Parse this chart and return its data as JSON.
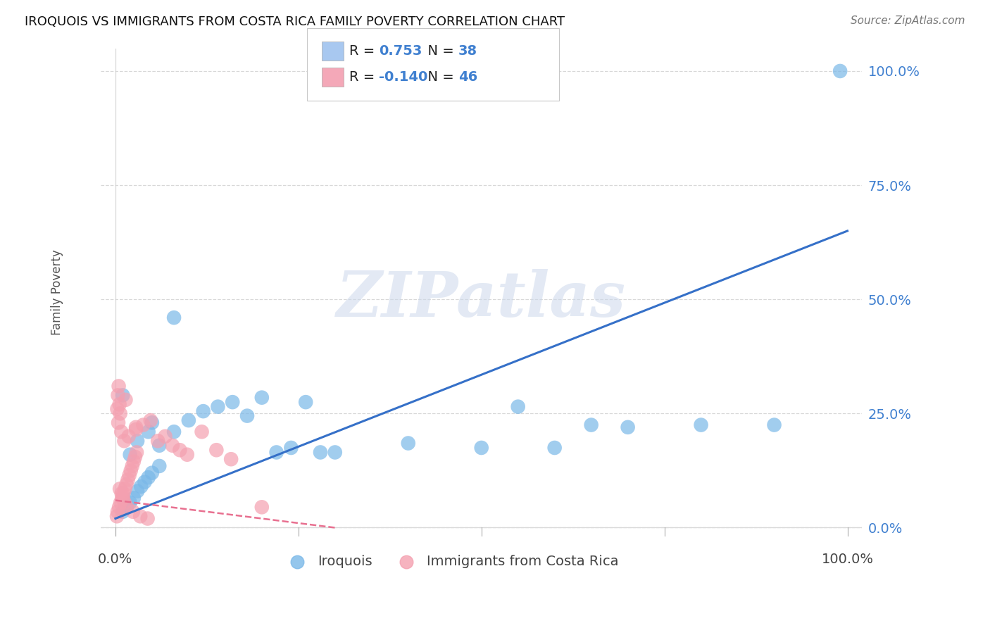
{
  "title": "IROQUOIS VS IMMIGRANTS FROM COSTA RICA FAMILY POVERTY CORRELATION CHART",
  "source": "Source: ZipAtlas.com",
  "ylabel": "Family Poverty",
  "ytick_labels": [
    "0.0%",
    "25.0%",
    "50.0%",
    "75.0%",
    "100.0%"
  ],
  "ytick_values": [
    0,
    25,
    50,
    75,
    100
  ],
  "xtick_labels": [
    "0.0%",
    "100.0%"
  ],
  "xtick_values": [
    0,
    100
  ],
  "xlim": [
    -2,
    102
  ],
  "ylim": [
    -2,
    105
  ],
  "legend_entries": [
    {
      "label": "Iroquois",
      "color": "#a8c8f0",
      "R": "0.753",
      "N": "38"
    },
    {
      "label": "Immigrants from Costa Rica",
      "color": "#f4a8b8",
      "R": "-0.140",
      "N": "46"
    }
  ],
  "blue_line": {
    "x0": 0,
    "y0": 2,
    "x1": 100,
    "y1": 65
  },
  "pink_line": {
    "x0": 0,
    "y0": 6,
    "x1": 30,
    "y1": 0
  },
  "blue_scatter": [
    [
      1.0,
      3.5
    ],
    [
      1.5,
      4.5
    ],
    [
      2.0,
      5.5
    ],
    [
      2.5,
      6.5
    ],
    [
      3.0,
      8.0
    ],
    [
      3.5,
      9.0
    ],
    [
      4.0,
      10.0
    ],
    [
      4.5,
      11.0
    ],
    [
      5.0,
      12.0
    ],
    [
      6.0,
      13.5
    ],
    [
      2.0,
      16.0
    ],
    [
      3.0,
      19.0
    ],
    [
      4.5,
      21.0
    ],
    [
      6.0,
      18.0
    ],
    [
      8.0,
      21.0
    ],
    [
      10.0,
      23.5
    ],
    [
      12.0,
      25.5
    ],
    [
      14.0,
      26.5
    ],
    [
      16.0,
      27.5
    ],
    [
      18.0,
      24.5
    ],
    [
      20.0,
      28.5
    ],
    [
      22.0,
      16.5
    ],
    [
      24.0,
      17.5
    ],
    [
      26.0,
      27.5
    ],
    [
      28.0,
      16.5
    ],
    [
      30.0,
      16.5
    ],
    [
      40.0,
      18.5
    ],
    [
      50.0,
      17.5
    ],
    [
      55.0,
      26.5
    ],
    [
      60.0,
      17.5
    ],
    [
      65.0,
      22.5
    ],
    [
      70.0,
      22.0
    ],
    [
      80.0,
      22.5
    ],
    [
      90.0,
      22.5
    ],
    [
      1.0,
      29.0
    ],
    [
      8.0,
      46.0
    ],
    [
      99.0,
      100.0
    ],
    [
      5.0,
      23.0
    ]
  ],
  "pink_scatter": [
    [
      0.2,
      2.5
    ],
    [
      0.3,
      3.5
    ],
    [
      0.5,
      4.5
    ],
    [
      0.7,
      5.5
    ],
    [
      0.9,
      6.5
    ],
    [
      1.1,
      7.5
    ],
    [
      1.3,
      8.5
    ],
    [
      1.5,
      9.5
    ],
    [
      1.7,
      10.5
    ],
    [
      1.9,
      11.5
    ],
    [
      2.1,
      12.5
    ],
    [
      2.3,
      13.5
    ],
    [
      2.5,
      14.5
    ],
    [
      2.7,
      15.5
    ],
    [
      2.9,
      16.5
    ],
    [
      0.4,
      23.0
    ],
    [
      0.8,
      21.0
    ],
    [
      1.2,
      19.0
    ],
    [
      1.8,
      20.0
    ],
    [
      2.8,
      21.5
    ],
    [
      3.8,
      22.5
    ],
    [
      4.8,
      23.5
    ],
    [
      5.8,
      19.0
    ],
    [
      6.8,
      20.0
    ],
    [
      7.8,
      18.0
    ],
    [
      8.8,
      17.0
    ],
    [
      9.8,
      16.0
    ],
    [
      11.8,
      21.0
    ],
    [
      13.8,
      17.0
    ],
    [
      15.8,
      15.0
    ],
    [
      0.25,
      26.0
    ],
    [
      1.4,
      28.0
    ],
    [
      2.8,
      22.0
    ],
    [
      20.0,
      4.5
    ],
    [
      0.6,
      8.5
    ],
    [
      0.85,
      7.5
    ],
    [
      1.05,
      6.5
    ],
    [
      1.25,
      5.5
    ],
    [
      1.55,
      4.5
    ],
    [
      2.4,
      3.5
    ],
    [
      3.4,
      2.5
    ],
    [
      4.4,
      2.0
    ],
    [
      0.35,
      29.0
    ],
    [
      0.55,
      27.0
    ],
    [
      0.65,
      25.0
    ],
    [
      0.45,
      31.0
    ]
  ],
  "watermark_text": "ZIPatlas",
  "watermark_color": "#ccd8ec",
  "watermark_alpha": 0.55,
  "bg_color": "#ffffff",
  "grid_color": "#d8d8d8",
  "blue_dot_color": "#7ab8e8",
  "blue_line_color": "#3570c8",
  "pink_dot_color": "#f4a0b0",
  "pink_line_color": "#e87090",
  "right_axis_color": "#4080d0",
  "title_fontsize": 13,
  "source_fontsize": 11,
  "tick_fontsize": 14,
  "ylabel_fontsize": 12,
  "legend_fontsize": 14
}
